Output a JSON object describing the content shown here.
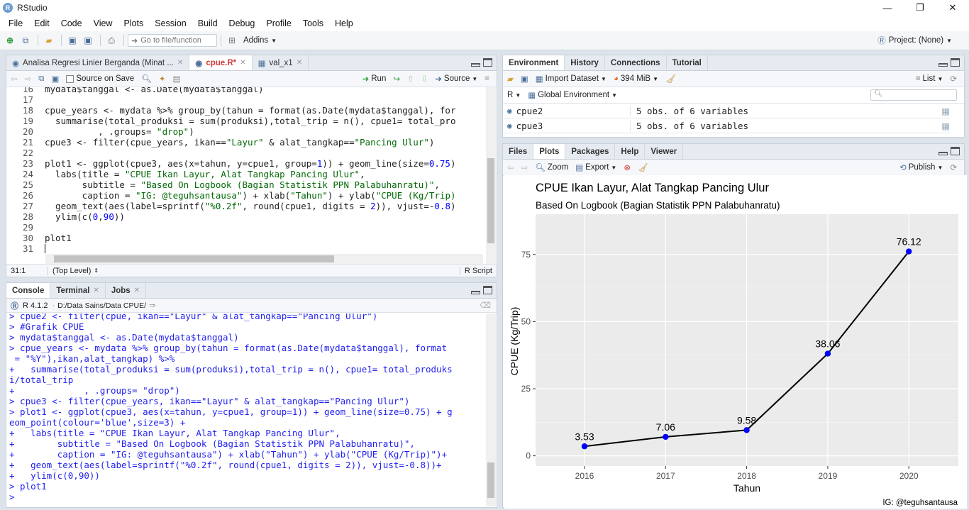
{
  "window": {
    "title": "RStudio",
    "logo": "R",
    "controls": [
      "—",
      "❐",
      "✕"
    ]
  },
  "menubar": [
    "File",
    "Edit",
    "Code",
    "View",
    "Plots",
    "Session",
    "Build",
    "Debug",
    "Profile",
    "Tools",
    "Help"
  ],
  "toolbar": {
    "goto_placeholder": "Go to file/function",
    "addins": "Addins",
    "project": "Project: (None)"
  },
  "editor": {
    "tabs": [
      "Analisa Regresi Linier Berganda (Minat ...",
      "cpue.R*",
      "val_x1"
    ],
    "source_on_save": "Source on Save",
    "run": "Run",
    "source": "Source",
    "line_numbers": [
      "16",
      "17",
      "18",
      "19",
      "20",
      "21",
      "22",
      "23",
      "24",
      "25",
      "26",
      "27",
      "28",
      "29",
      "30",
      "31"
    ],
    "lines": [
      "mydata$tanggal <- as.Date(mydata$tanggal)",
      "",
      "cpue_years <- mydata %>% group_by(tahun = format(as.Date(mydata$tanggal), for",
      "  summarise(total_produksi = sum(produksi),total_trip = n(), cpue1= total_pro",
      "          , .groups= \"drop\")",
      "cpue3 <- filter(cpue_years, ikan==\"Layur\" & alat_tangkap==\"Pancing Ulur\")",
      "",
      "plot1 <- ggplot(cpue3, aes(x=tahun, y=cpue1, group=1)) + geom_line(size=0.75)",
      "  labs(title = \"CPUE Ikan Layur, Alat Tangkap Pancing Ulur\",",
      "       subtitle = \"Based On Logbook (Bagian Statistik PPN Palabuhanratu)\",",
      "       caption = \"IG: @teguhsantausa\") + xlab(\"Tahun\") + ylab(\"CPUE (Kg/Trip)",
      "  geom_text(aes(label=sprintf(\"%0.2f\", round(cpue1, digits = 2)), vjust=-0.8)",
      "  ylim(c(0,90))",
      "",
      "plot1",
      ""
    ],
    "cursor_pos": "31:1",
    "scope": "(Top Level)",
    "file_type": "R Script"
  },
  "console": {
    "tabs": [
      "Console",
      "Terminal",
      "Jobs"
    ],
    "r_version": "R 4.1.2",
    "path": "D:/Data Sains/Data CPUE/",
    "lines": [
      "> cpue2 <- filter(cpue, ikan==\"Layur\" & alat_tangkap==\"Pancing Ulur\")",
      "> #Grafik CPUE",
      "> mydata$tanggal <- as.Date(mydata$tanggal)",
      "> cpue_years <- mydata %>% group_by(tahun = format(as.Date(mydata$tanggal), format",
      " = \"%Y\"),ikan,alat_tangkap) %>%",
      "+   summarise(total_produksi = sum(produksi),total_trip = n(), cpue1= total_produks",
      "i/total_trip",
      "+             , .groups= \"drop\")",
      "> cpue3 <- filter(cpue_years, ikan==\"Layur\" & alat_tangkap==\"Pancing Ulur\")",
      "> plot1 <- ggplot(cpue3, aes(x=tahun, y=cpue1, group=1)) + geom_line(size=0.75) + g",
      "eom_point(colour='blue',size=3) +",
      "+   labs(title = \"CPUE Ikan Layur, Alat Tangkap Pancing Ulur\",",
      "+        subtitle = \"Based On Logbook (Bagian Statistik PPN Palabuhanratu)\",",
      "+        caption = \"IG: @teguhsantausa\") + xlab(\"Tahun\") + ylab(\"CPUE (Kg/Trip)\")+",
      "+   geom_text(aes(label=sprintf(\"%0.2f\", round(cpue1, digits = 2)), vjust=-0.8))+",
      "+   ylim(c(0,90))",
      "> plot1",
      "> "
    ]
  },
  "environment": {
    "tabs": [
      "Environment",
      "History",
      "Connections",
      "Tutorial"
    ],
    "import_dataset": "Import Dataset",
    "memory": "394 MiB",
    "list_view": "List",
    "language": "R",
    "scope": "Global Environment",
    "rows": [
      {
        "name": "cpue2",
        "value": "5 obs. of 6 variables"
      },
      {
        "name": "cpue3",
        "value": "5 obs. of 6 variables"
      }
    ]
  },
  "plots_pane": {
    "tabs": [
      "Files",
      "Plots",
      "Packages",
      "Help",
      "Viewer"
    ],
    "zoom": "Zoom",
    "export": "Export",
    "publish": "Publish"
  },
  "chart_data": {
    "type": "line",
    "title": "CPUE Ikan Layur, Alat Tangkap Pancing Ulur",
    "subtitle": "Based On Logbook (Bagian Statistik PPN Palabuhanratu)",
    "caption": "IG: @teguhsantausa",
    "xlabel": "Tahun",
    "ylabel": "CPUE (Kg/Trip)",
    "categories": [
      "2016",
      "2017",
      "2018",
      "2019",
      "2020"
    ],
    "values": [
      3.53,
      7.06,
      9.58,
      38.06,
      76.12
    ],
    "labels": [
      "3.53",
      "7.06",
      "9.58",
      "38.06",
      "76.12"
    ],
    "yticks": [
      0,
      25,
      50,
      75
    ],
    "ylim": [
      0,
      90
    ],
    "line_color": "#000000",
    "point_color": "#0000ff",
    "panel_color": "#ebebeb",
    "grid": true
  }
}
